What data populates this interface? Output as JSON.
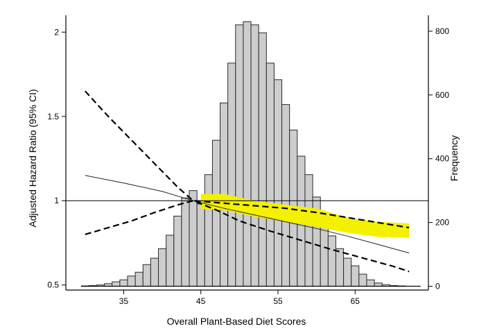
{
  "chart_data": {
    "type": "bar+line",
    "xlabel": "Overall Plant-Based Diet Scores",
    "ylabel_left": "Adjusted Hazard Ratio (95% CI)",
    "ylabel_right": "Frequency",
    "x_ticks": [
      35,
      45,
      55,
      65
    ],
    "y_left_ticks": [
      {
        "value": 0.5,
        "label": "0.5"
      },
      {
        "value": 1.0,
        "label": "1"
      },
      {
        "value": 1.5,
        "label": "1.5"
      },
      {
        "value": 2.0,
        "label": "2"
      }
    ],
    "y_right_ticks": [
      {
        "value": 0,
        "label": "0"
      },
      {
        "value": 200,
        "label": "200"
      },
      {
        "value": 400,
        "label": "400"
      },
      {
        "value": 600,
        "label": "600"
      },
      {
        "value": 800,
        "label": "800"
      }
    ],
    "xlim": [
      27.5,
      74.5
    ],
    "ylim_left": [
      0.47,
      2.1
    ],
    "ylim_right": [
      -12,
      850
    ],
    "reference_line": 1.0,
    "histogram": {
      "x": [
        30,
        31,
        32,
        33,
        34,
        35,
        36,
        37,
        38,
        39,
        40,
        41,
        42,
        43,
        44,
        45,
        46,
        47,
        48,
        49,
        50,
        51,
        52,
        53,
        54,
        55,
        56,
        57,
        58,
        59,
        60,
        61,
        62,
        63,
        64,
        65,
        66,
        67,
        68,
        69,
        70,
        71,
        72,
        73
      ],
      "counts": [
        1,
        2,
        4,
        8,
        14,
        20,
        32,
        44,
        68,
        88,
        118,
        160,
        220,
        277,
        300,
        258,
        350,
        458,
        575,
        700,
        820,
        830,
        820,
        795,
        700,
        648,
        570,
        490,
        408,
        350,
        280,
        198,
        158,
        118,
        88,
        64,
        38,
        20,
        10,
        5,
        2,
        1,
        0,
        0
      ]
    },
    "hr_curve": {
      "x": [
        30,
        35,
        40,
        44,
        48,
        52,
        56,
        60,
        64,
        68,
        72
      ],
      "y": [
        1.15,
        1.105,
        1.055,
        1.0,
        0.955,
        0.915,
        0.875,
        0.835,
        0.79,
        0.74,
        0.69
      ]
    },
    "ci_upper": {
      "x": [
        30,
        33,
        36,
        39,
        42,
        44,
        48,
        52,
        56,
        60,
        64,
        68,
        72
      ],
      "y": [
        1.65,
        1.5,
        1.36,
        1.22,
        1.08,
        1.0,
        0.985,
        0.97,
        0.955,
        0.93,
        0.9,
        0.87,
        0.84
      ]
    },
    "ci_lower": {
      "x": [
        30,
        33,
        36,
        39,
        42,
        44,
        47,
        50,
        54,
        58,
        62,
        66,
        70,
        72
      ],
      "y": [
        0.8,
        0.84,
        0.88,
        0.93,
        0.975,
        1.0,
        0.945,
        0.88,
        0.82,
        0.765,
        0.71,
        0.66,
        0.61,
        0.58
      ]
    },
    "yellow_band": {
      "x": [
        45,
        48,
        52,
        56,
        60,
        64,
        68,
        72
      ],
      "upper": [
        1.04,
        1.04,
        1.0,
        0.975,
        0.955,
        0.9,
        0.875,
        0.865
      ],
      "lower": [
        0.95,
        0.945,
        0.905,
        0.875,
        0.845,
        0.81,
        0.785,
        0.78
      ]
    },
    "colors": {
      "bar_fill": "#cdcdcd",
      "bar_stroke": "#2a2a2a",
      "band": "#f3f000",
      "line": "#000000"
    }
  }
}
